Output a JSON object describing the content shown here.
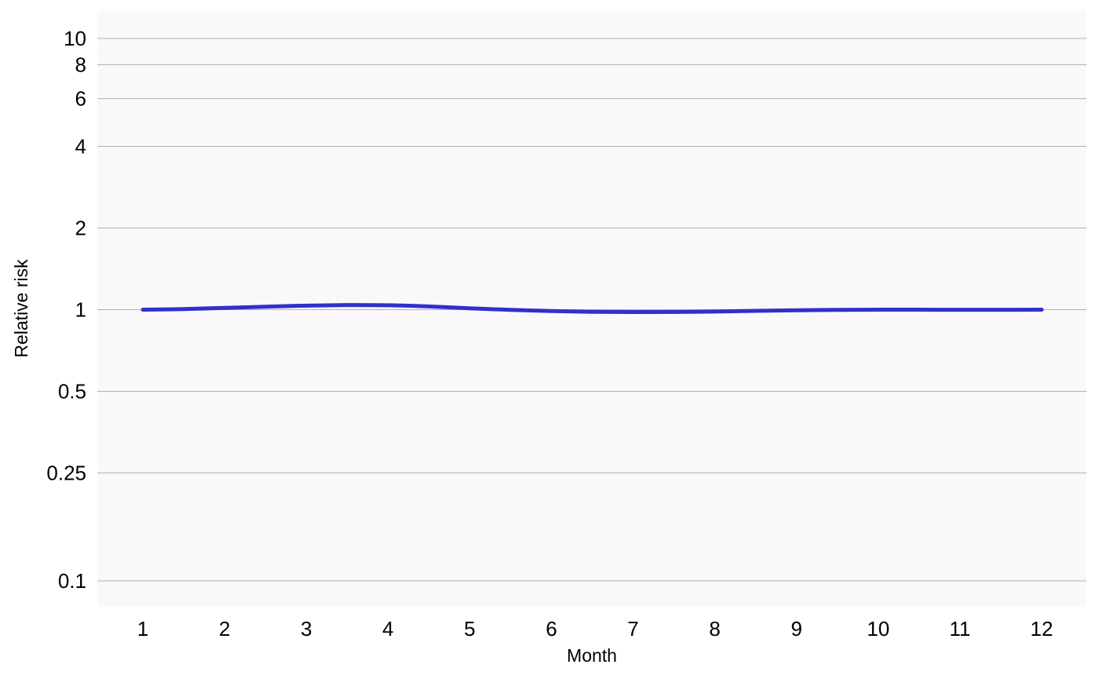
{
  "chart_data": {
    "type": "line",
    "title": "",
    "xlabel": "Month",
    "ylabel": "Relative risk",
    "y_scale": "log",
    "ylim": [
      0.08,
      12.5
    ],
    "xlim": [
      0.45,
      12.55
    ],
    "grid": "horizontal",
    "legend": "none",
    "x_ticks": [
      1,
      2,
      3,
      4,
      5,
      6,
      7,
      8,
      9,
      10,
      11,
      12
    ],
    "x_tick_labels": [
      "1",
      "2",
      "3",
      "4",
      "5",
      "6",
      "7",
      "8",
      "9",
      "10",
      "11",
      "12"
    ],
    "y_ticks": [
      0.1,
      0.25,
      0.5,
      1,
      2,
      4,
      6,
      8,
      10
    ],
    "y_tick_labels": [
      "0.1",
      "0.25",
      "0.5",
      "1",
      "2",
      "4",
      "6",
      "8",
      "10"
    ],
    "series": [
      {
        "color": "#3030cc",
        "x": [
          1,
          1.5,
          2,
          2.5,
          3,
          3.5,
          4,
          4.5,
          5,
          5.5,
          6,
          6.5,
          7,
          7.5,
          8,
          8.5,
          9,
          9.5,
          10,
          10.5,
          11,
          11.5,
          12
        ],
        "y": [
          1.0,
          1.005,
          1.015,
          1.025,
          1.035,
          1.04,
          1.038,
          1.028,
          1.012,
          0.998,
          0.988,
          0.982,
          0.98,
          0.981,
          0.984,
          0.99,
          0.995,
          0.998,
          1.0,
          1.0,
          0.999,
          0.999,
          1.0
        ]
      }
    ],
    "colors": {
      "panel_background": "#f9f9f9",
      "gridline": "#b3b3b3",
      "line": "#3030cc"
    }
  }
}
